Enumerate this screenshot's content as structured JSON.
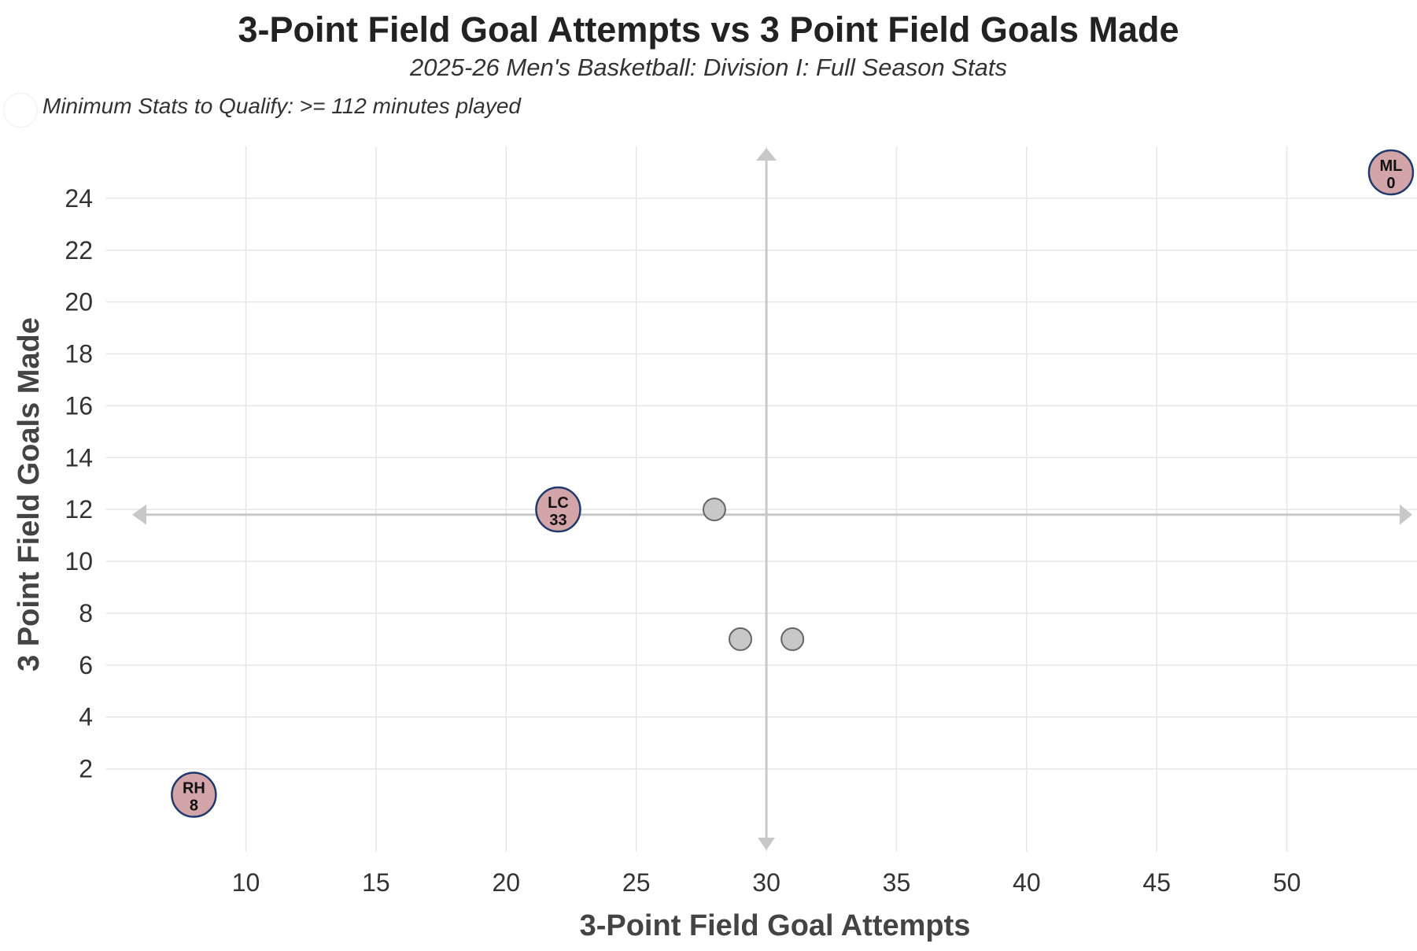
{
  "chart_data": {
    "type": "scatter",
    "title": "3-Point Field Goal Attempts vs 3 Point Field Goals Made",
    "subtitle": "2025-26 Men's Basketball: Division I: Full Season Stats",
    "note": "Minimum Stats to Qualify: >= 112 minutes played",
    "xlabel": "3-Point Field Goal Attempts",
    "ylabel": "3 Point Field Goals Made",
    "xlim": [
      5.6,
      55
    ],
    "ylim": [
      -1.2,
      26
    ],
    "xticks": [
      10,
      15,
      20,
      25,
      30,
      35,
      40,
      45,
      50
    ],
    "yticks": [
      2,
      4,
      6,
      8,
      10,
      12,
      14,
      16,
      18,
      20,
      22,
      24
    ],
    "grid": true,
    "reference_lines": {
      "x": 30,
      "y": 11.8
    },
    "points": [
      {
        "x": 8,
        "y": 1,
        "initials": "RH",
        "number": "8",
        "highlighted": true
      },
      {
        "x": 22,
        "y": 12,
        "initials": "LC",
        "number": "33",
        "highlighted": true
      },
      {
        "x": 28,
        "y": 12,
        "highlighted": false
      },
      {
        "x": 29,
        "y": 7,
        "highlighted": false
      },
      {
        "x": 31,
        "y": 7,
        "highlighted": false
      },
      {
        "x": 54,
        "y": 25,
        "initials": "ML",
        "number": "0",
        "highlighted": true
      }
    ],
    "colors": {
      "highlight_fill": "#d4a5a8",
      "highlight_stroke": "#1f3a6b",
      "point_fill": "#c8c8c8",
      "point_stroke": "#666666",
      "grid": "#e6e6e6",
      "reference": "#c8c8c8"
    }
  }
}
